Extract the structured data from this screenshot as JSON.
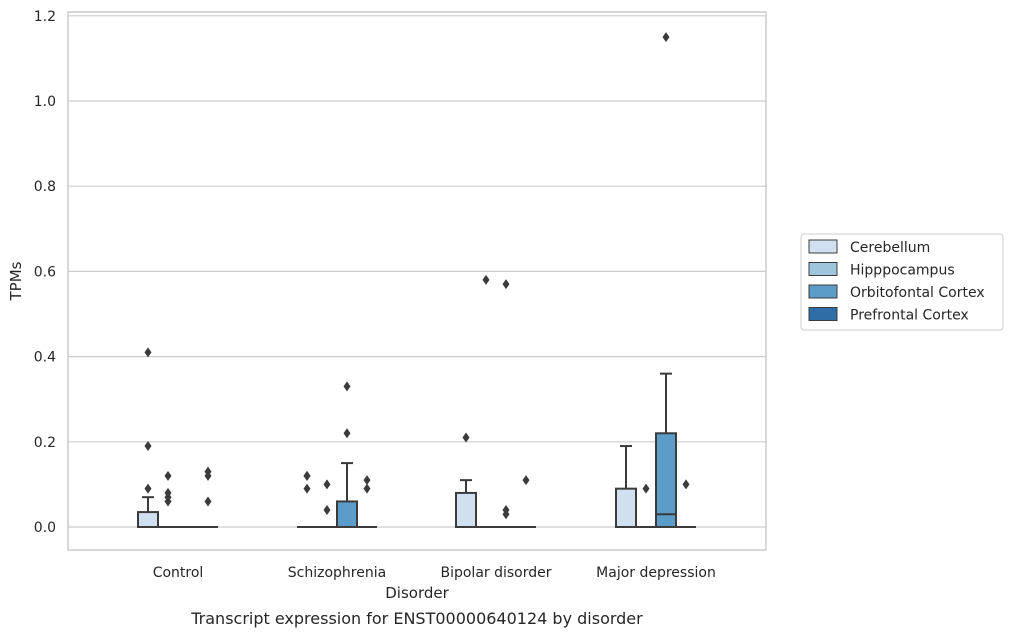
{
  "chart_data": {
    "type": "box",
    "xlabel": "Disorder",
    "ylabel": "TPMs",
    "caption": "Transcript expression for ENST00000640124 by disorder",
    "ylim": [
      -0.055,
      1.21
    ],
    "yticks": [
      0.0,
      0.2,
      0.4,
      0.6,
      0.8,
      1.0,
      1.2
    ],
    "ytick_labels": [
      "0.0",
      "0.2",
      "0.4",
      "0.6",
      "0.8",
      "1.0",
      "1.2"
    ],
    "grid": "horizontal",
    "legend_position": "right",
    "categories": [
      "Control",
      "Schizophrenia",
      "Bipolar disorder",
      "Major depression"
    ],
    "series": [
      {
        "name": "Cerebellum",
        "color": "#d0e0f0",
        "boxes": [
          {
            "q1": 0.0,
            "median": 0.0,
            "q3": 0.035,
            "whisker_low": 0.0,
            "whisker_high": 0.07,
            "outliers": [
              0.09,
              0.19,
              0.41
            ]
          },
          {
            "q1": 0.0,
            "median": 0.0,
            "q3": 0.0,
            "whisker_low": 0.0,
            "whisker_high": 0.0,
            "outliers": [
              0.09,
              0.12,
              0.12
            ]
          },
          {
            "q1": 0.0,
            "median": 0.0,
            "q3": 0.08,
            "whisker_low": 0.0,
            "whisker_high": 0.11,
            "outliers": [
              0.21
            ]
          },
          {
            "q1": 0.0,
            "median": 0.0,
            "q3": 0.09,
            "whisker_low": 0.0,
            "whisker_high": 0.19,
            "outliers": []
          }
        ]
      },
      {
        "name": "Hipppocampus",
        "color": "#9fc5dc",
        "boxes": [
          {
            "q1": 0.0,
            "median": 0.0,
            "q3": 0.0,
            "whisker_low": 0.0,
            "whisker_high": 0.0,
            "outliers": [
              0.06,
              0.07,
              0.08,
              0.12
            ]
          },
          {
            "q1": 0.0,
            "median": 0.0,
            "q3": 0.0,
            "whisker_low": 0.0,
            "whisker_high": 0.0,
            "outliers": [
              0.04,
              0.1
            ]
          },
          {
            "q1": 0.0,
            "median": 0.0,
            "q3": 0.0,
            "whisker_low": 0.0,
            "whisker_high": 0.0,
            "outliers": [
              0.58
            ]
          },
          {
            "q1": 0.0,
            "median": 0.0,
            "q3": 0.0,
            "whisker_low": 0.0,
            "whisker_high": 0.0,
            "outliers": [
              0.09
            ]
          }
        ]
      },
      {
        "name": "Orbitofontal Cortex",
        "color": "#5b9cc8",
        "boxes": [
          {
            "q1": 0.0,
            "median": 0.0,
            "q3": 0.0,
            "whisker_low": 0.0,
            "whisker_high": 0.0,
            "outliers": []
          },
          {
            "q1": 0.0,
            "median": 0.0,
            "q3": 0.06,
            "whisker_low": 0.0,
            "whisker_high": 0.15,
            "outliers": [
              0.22,
              0.33
            ]
          },
          {
            "q1": 0.0,
            "median": 0.0,
            "q3": 0.0,
            "whisker_low": 0.0,
            "whisker_high": 0.0,
            "outliers": [
              0.03,
              0.04,
              0.57
            ]
          },
          {
            "q1": 0.0,
            "median": 0.03,
            "q3": 0.22,
            "whisker_low": 0.0,
            "whisker_high": 0.36,
            "outliers": [
              1.15
            ]
          }
        ]
      },
      {
        "name": "Prefrontal Cortex",
        "color": "#2e6da5",
        "boxes": [
          {
            "q1": 0.0,
            "median": 0.0,
            "q3": 0.0,
            "whisker_low": 0.0,
            "whisker_high": 0.0,
            "outliers": [
              0.06,
              0.12,
              0.13
            ]
          },
          {
            "q1": 0.0,
            "median": 0.0,
            "q3": 0.0,
            "whisker_low": 0.0,
            "whisker_high": 0.0,
            "outliers": [
              0.09,
              0.11
            ]
          },
          {
            "q1": 0.0,
            "median": 0.0,
            "q3": 0.0,
            "whisker_low": 0.0,
            "whisker_high": 0.0,
            "outliers": [
              0.11
            ]
          },
          {
            "q1": 0.0,
            "median": 0.0,
            "q3": 0.0,
            "whisker_low": 0.0,
            "whisker_high": 0.0,
            "outliers": [
              0.1
            ]
          }
        ]
      }
    ]
  }
}
